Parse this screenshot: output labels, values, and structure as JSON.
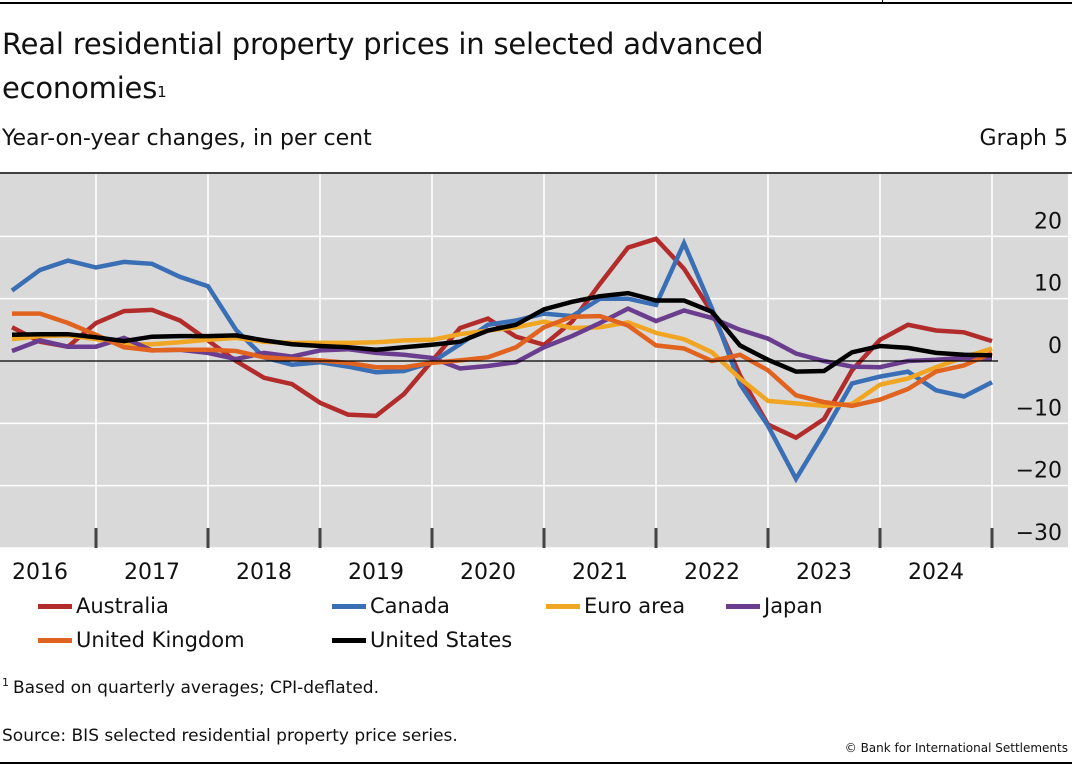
{
  "header": {
    "title": "Real residential property prices in selected advanced economies",
    "title_footnote_marker": "1",
    "subtitle": "Year-on-year changes, in per cent",
    "graph_number": "Graph 5"
  },
  "footer": {
    "footnote_marker": "1",
    "footnote": "Based on quarterly averages; CPI-deflated.",
    "source": "Source: BIS selected residential property price series.",
    "copyright": "© Bank for International Settlements"
  },
  "chart_data": {
    "type": "line",
    "title": "Real residential property prices in selected advanced economies",
    "xlabel": "",
    "ylabel": "Year-on-year changes, in per cent",
    "frequency": "quarterly",
    "x_start": "2016-Q1",
    "x_end": "2024-Q4",
    "x_tick_labels": [
      "2016",
      "2017",
      "2018",
      "2019",
      "2020",
      "2021",
      "2022",
      "2023",
      "2024"
    ],
    "ylim": [
      -30,
      30
    ],
    "y_ticks": [
      20,
      10,
      0,
      -10,
      -20,
      -30
    ],
    "y_tick_labels": [
      "20",
      "10",
      "0",
      "−10",
      "−20",
      "−30"
    ],
    "y_axis_side": "right",
    "grid": true,
    "zero_line": true,
    "background": "#d9d9d9",
    "legend_position": "bottom",
    "series": [
      {
        "name": "Australia",
        "color": "#b22c2c",
        "values": [
          5.4,
          3.1,
          2.3,
          6.1,
          8.0,
          8.2,
          6.5,
          3.3,
          0.0,
          -2.7,
          -3.7,
          -6.7,
          -8.6,
          -8.8,
          -5.3,
          0.0,
          5.3,
          6.8,
          3.9,
          2.6,
          6.3,
          12.4,
          18.2,
          19.6,
          14.8,
          7.8,
          -2.3,
          -10.2,
          -12.3,
          -9.3,
          -1.5,
          3.4,
          5.8,
          4.9,
          4.6,
          3.2
        ]
      },
      {
        "name": "Canada",
        "color": "#3a6fb5",
        "values": [
          11.3,
          14.6,
          16.1,
          15.0,
          15.9,
          15.6,
          13.5,
          12.0,
          5.0,
          0.6,
          -0.6,
          -0.2,
          -0.9,
          -1.8,
          -1.6,
          -0.2,
          2.7,
          5.8,
          6.5,
          7.6,
          7.2,
          10.0,
          10.0,
          9.0,
          18.9,
          8.4,
          -3.7,
          -10.4,
          -18.9,
          -11.5,
          -3.6,
          -2.5,
          -1.7,
          -4.7,
          -5.7,
          -3.4
        ]
      },
      {
        "name": "Euro area",
        "color": "#f0a523",
        "values": [
          3.5,
          4.0,
          4.1,
          3.5,
          2.7,
          2.7,
          3.0,
          3.4,
          3.7,
          3.1,
          2.9,
          2.9,
          2.9,
          3.0,
          3.3,
          3.4,
          4.3,
          4.9,
          5.4,
          6.3,
          5.3,
          5.4,
          6.2,
          4.5,
          3.5,
          1.4,
          -2.8,
          -6.4,
          -6.8,
          -7.2,
          -6.9,
          -3.8,
          -2.8,
          -1.0,
          0.6,
          2.0
        ]
      },
      {
        "name": "Japan",
        "color": "#6a3d8e",
        "values": [
          1.6,
          3.3,
          2.3,
          2.3,
          3.7,
          1.7,
          1.8,
          1.3,
          0.3,
          1.3,
          0.7,
          1.7,
          1.9,
          1.3,
          1.0,
          0.5,
          -1.2,
          -0.8,
          -0.2,
          2.2,
          4.0,
          6.1,
          8.4,
          6.4,
          8.1,
          6.9,
          5.0,
          3.6,
          1.2,
          0.0,
          -0.9,
          -1.0,
          0.0,
          0.2,
          0.5,
          0.4
        ]
      },
      {
        "name": "United Kingdom",
        "color": "#e06320",
        "values": [
          7.6,
          7.6,
          6.1,
          4.2,
          2.2,
          1.7,
          1.8,
          1.8,
          1.6,
          0.6,
          0.3,
          0.1,
          -0.3,
          -1.0,
          -1.0,
          -0.3,
          0.1,
          0.6,
          2.2,
          5.4,
          7.1,
          7.2,
          5.7,
          2.5,
          2.0,
          0.0,
          1.0,
          -1.5,
          -5.5,
          -6.6,
          -7.2,
          -6.2,
          -4.5,
          -1.7,
          -0.7,
          1.3
        ]
      },
      {
        "name": "United States",
        "color": "#000000",
        "values": [
          4.2,
          4.3,
          4.3,
          3.8,
          3.2,
          3.9,
          4.0,
          4.0,
          4.1,
          3.3,
          2.7,
          2.4,
          2.2,
          1.8,
          2.2,
          2.6,
          3.1,
          4.9,
          5.8,
          8.3,
          9.5,
          10.4,
          10.9,
          9.7,
          9.7,
          7.9,
          2.5,
          0.2,
          -1.7,
          -1.6,
          1.4,
          2.4,
          2.1,
          1.3,
          1.0,
          0.9
        ]
      }
    ]
  }
}
